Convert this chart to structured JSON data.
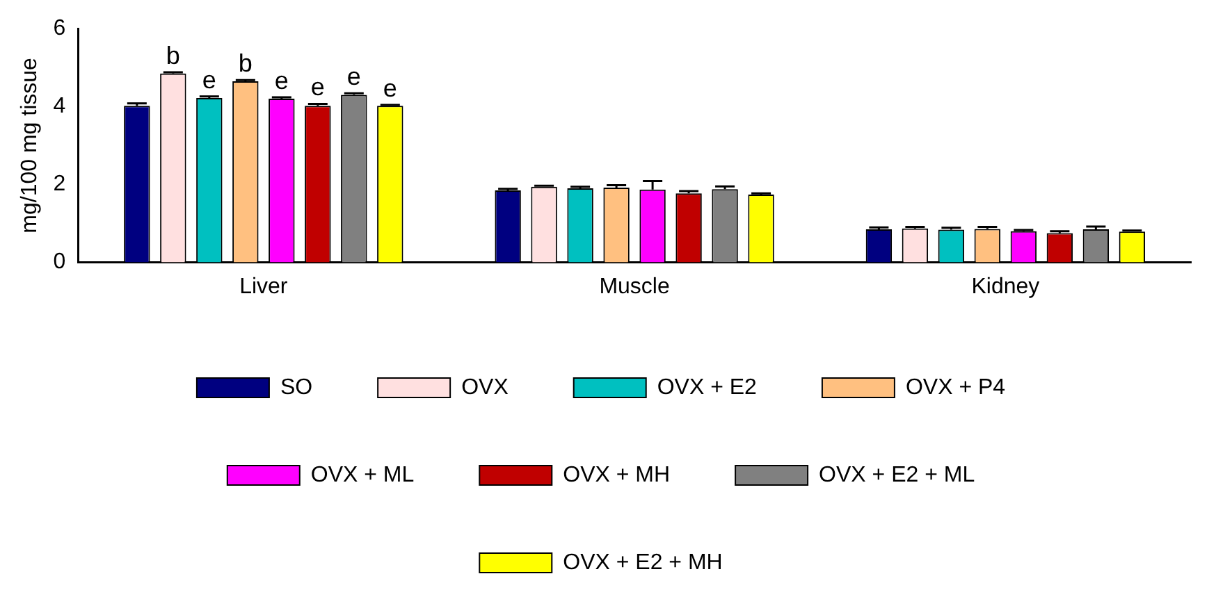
{
  "chart_data": {
    "type": "bar",
    "ylabel": "mg/100 mg tissue",
    "categories": [
      "Liver",
      "Muscle",
      "Kidney"
    ],
    "ylim": [
      0,
      6
    ],
    "yticks": [
      0,
      2,
      4,
      6
    ],
    "grid": false,
    "legend": "bottom",
    "series": [
      {
        "name": "SO",
        "color": "#000080",
        "values": [
          4.02,
          1.85,
          0.85
        ],
        "errors": [
          0.06,
          0.04,
          0.05
        ]
      },
      {
        "name": "OVX",
        "color": "#ffe0e0",
        "values": [
          4.85,
          1.94,
          0.87
        ],
        "errors": [
          0.03,
          0.03,
          0.04
        ],
        "value_labels": [
          "b",
          null,
          null
        ]
      },
      {
        "name": "OVX + E2",
        "color": "#00c0c0",
        "values": [
          4.22,
          1.9,
          0.84
        ],
        "errors": [
          0.04,
          0.04,
          0.05
        ],
        "value_labels": [
          "e",
          null,
          null
        ]
      },
      {
        "name": "OVX + P4",
        "color": "#ffc080",
        "values": [
          4.65,
          1.92,
          0.86
        ],
        "errors": [
          0.03,
          0.06,
          0.05
        ],
        "value_labels": [
          "b",
          null,
          null
        ]
      },
      {
        "name": "OVX + ML",
        "color": "#ff00ff",
        "values": [
          4.2,
          1.87,
          0.8
        ],
        "errors": [
          0.04,
          0.22,
          0.03
        ],
        "value_labels": [
          "e",
          null,
          null
        ]
      },
      {
        "name": "OVX + MH",
        "color": "#c00000",
        "values": [
          4.02,
          1.77,
          0.75
        ],
        "errors": [
          0.05,
          0.06,
          0.05
        ],
        "value_labels": [
          "e",
          null,
          null
        ]
      },
      {
        "name": "OVX + E2 + ML",
        "color": "#808080",
        "values": [
          4.3,
          1.88,
          0.85
        ],
        "errors": [
          0.04,
          0.07,
          0.07
        ],
        "value_labels": [
          "e",
          null,
          null
        ]
      },
      {
        "name": "OVX + E2 + MH",
        "color": "#ffff00",
        "values": [
          4.02,
          1.74,
          0.79
        ],
        "errors": [
          0.02,
          0.03,
          0.03
        ],
        "value_labels": [
          "e",
          null,
          null
        ]
      }
    ]
  }
}
